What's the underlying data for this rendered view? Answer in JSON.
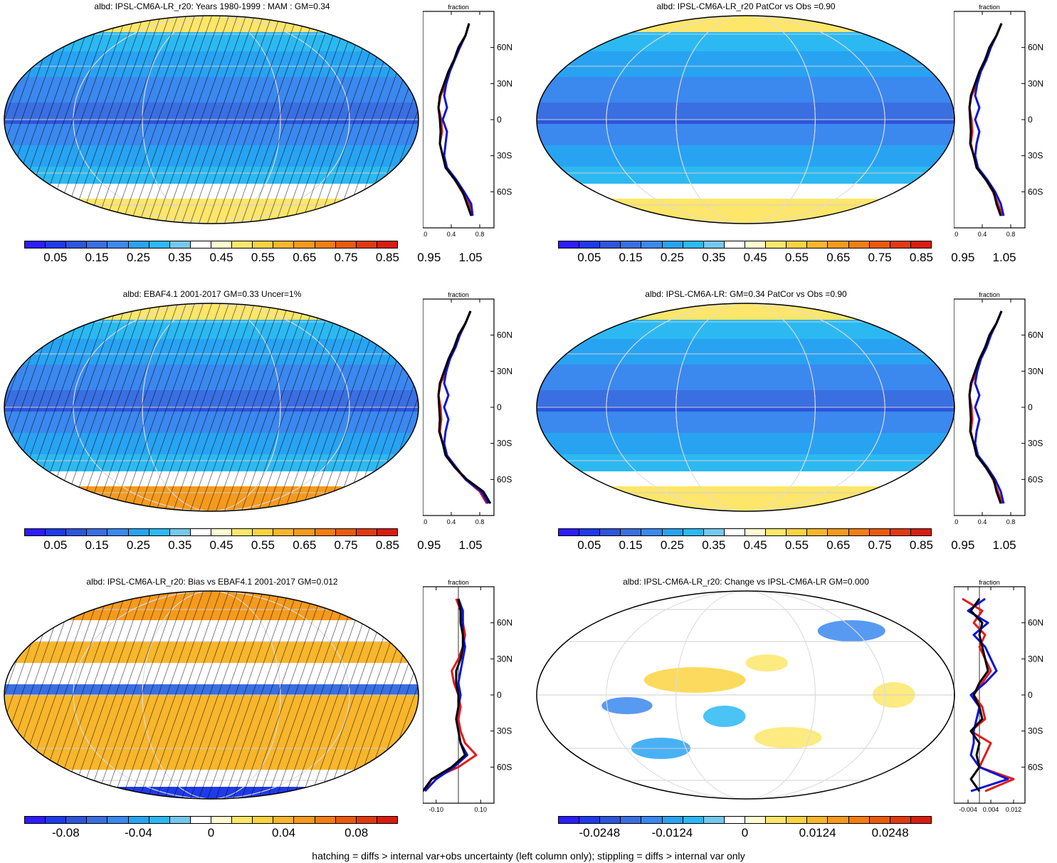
{
  "footer": "hatching = diffs > internal var+obs uncertainty (left column only); stippling = diffs > internal var only",
  "colors": {
    "ramp": [
      "#2c1dfc",
      "#1f3ae8",
      "#2d55dc",
      "#3a6fe2",
      "#3b88ef",
      "#28a3f2",
      "#2cb9f2",
      "#74c8ee",
      "#ffffff",
      "#fffad0",
      "#fde66a",
      "#fbd341",
      "#f8b62c",
      "#f59a1c",
      "#f27e12",
      "#ea5a0e",
      "#e2390f",
      "#d81d10"
    ],
    "model_line": "#e41a1c",
    "obs_line": "#0a14d8",
    "other_line": "#000000",
    "land": "#fde66a"
  },
  "panels": [
    {
      "id": "model-mam",
      "title": "albd: IPSL-CM6A-LR_r20: Years 1980-1999 : MAM : GM=0.34",
      "cb_labels": [
        "0.05",
        "0.15",
        "0.25",
        "0.35",
        "0.45",
        "0.55",
        "0.65",
        "0.75",
        "0.85",
        "0.95",
        "1.05"
      ],
      "prof_ticks_x": [
        "0.0",
        "0.4",
        "0.8"
      ],
      "prof_lat_labels": [
        "60N",
        "30N",
        "0",
        "30S",
        "60S"
      ],
      "prof_unit": "fraction"
    },
    {
      "id": "model-patcor",
      "title": "albd: IPSL-CM6A-LR_r20 PatCor vs Obs =0.90",
      "cb_labels": [
        "0.05",
        "0.15",
        "0.25",
        "0.35",
        "0.45",
        "0.55",
        "0.65",
        "0.75",
        "0.85",
        "0.95",
        "1.05"
      ],
      "prof_ticks_x": [
        "0.0",
        "0.4",
        "0.8"
      ],
      "prof_lat_labels": [
        "60N",
        "30N",
        "0",
        "30S",
        "60S"
      ],
      "prof_unit": "fraction"
    },
    {
      "id": "obs-ebaf",
      "title": "albd: EBAF4.1 2001-2017 GM=0.33 Uncer=1%",
      "cb_labels": [
        "0.05",
        "0.15",
        "0.25",
        "0.35",
        "0.45",
        "0.55",
        "0.65",
        "0.75",
        "0.85",
        "0.95",
        "1.05"
      ],
      "prof_ticks_x": [
        "0.0",
        "0.4",
        "0.8"
      ],
      "prof_lat_labels": [
        "60N",
        "30N",
        "0",
        "30S",
        "60S"
      ],
      "prof_unit": "fraction"
    },
    {
      "id": "ref-model",
      "title": "albd: IPSL-CM6A-LR: GM=0.34 PatCor vs Obs =0.90",
      "cb_labels": [
        "0.05",
        "0.15",
        "0.25",
        "0.35",
        "0.45",
        "0.55",
        "0.65",
        "0.75",
        "0.85",
        "0.95",
        "1.05"
      ],
      "prof_ticks_x": [
        "0.0",
        "0.4",
        "0.8"
      ],
      "prof_lat_labels": [
        "60N",
        "30N",
        "0",
        "30S",
        "60S"
      ],
      "prof_unit": "fraction"
    },
    {
      "id": "bias",
      "title": "albd: IPSL-CM6A-LR_r20: Bias vs EBAF4.1 2001-2017 GM=0.012",
      "cb_labels": [
        "-0.08",
        "-0.04",
        "0",
        "0.04",
        "0.08"
      ],
      "prof_ticks_x": [
        "-0.10",
        "0.10"
      ],
      "prof_lat_labels": [
        "60N",
        "30N",
        "0",
        "30S",
        "60S"
      ],
      "prof_unit": "fraction"
    },
    {
      "id": "change",
      "title": "albd: IPSL-CM6A-LR_r20: Change vs IPSL-CM6A-LR GM=0.000",
      "cb_labels": [
        "-0.0248",
        "-0.0124",
        "0",
        "0.0124",
        "0.0248"
      ],
      "prof_ticks_x": [
        "-0.004",
        "0.004",
        "0.012"
      ],
      "prof_lat_labels": [
        "60N",
        "30N",
        "0",
        "30S",
        "60S"
      ],
      "prof_unit": "fraction"
    }
  ],
  "chart_data": [
    {
      "type": "line",
      "panel": "model-mam",
      "title": "albd: IPSL-CM6A-LR_r20: Years 1980-1999 : MAM : GM=0.34",
      "xlabel": "fraction",
      "xlim": [
        0,
        1.0
      ],
      "ylim": [
        -90,
        90
      ],
      "x_ticks": [
        0.0,
        0.4,
        0.8
      ],
      "y_ticks": [
        "60N",
        "30N",
        "0",
        "30S",
        "60S"
      ],
      "lat": [
        80,
        70,
        60,
        50,
        40,
        30,
        20,
        10,
        0,
        -10,
        -20,
        -30,
        -40,
        -50,
        -60,
        -70,
        -80
      ],
      "series": [
        {
          "values": [
            0.65,
            0.6,
            0.52,
            0.45,
            0.38,
            0.33,
            0.25,
            0.22,
            0.26,
            0.27,
            0.24,
            0.28,
            0.33,
            0.45,
            0.55,
            0.65,
            0.7
          ]
        },
        {
          "values": [
            0.65,
            0.6,
            0.52,
            0.45,
            0.38,
            0.33,
            0.3,
            0.34,
            0.28,
            0.34,
            0.32,
            0.3,
            0.34,
            0.47,
            0.58,
            0.68,
            0.7
          ]
        },
        {
          "values": [
            0.65,
            0.6,
            0.5,
            0.44,
            0.36,
            0.3,
            0.24,
            0.22,
            0.24,
            0.25,
            0.24,
            0.28,
            0.32,
            0.45,
            0.56,
            0.62,
            0.68
          ]
        }
      ]
    },
    {
      "type": "line",
      "panel": "model-patcor",
      "title": "albd: IPSL-CM6A-LR_r20 PatCor vs Obs =0.90",
      "xlabel": "fraction",
      "xlim": [
        0,
        1.0
      ],
      "ylim": [
        -90,
        90
      ],
      "x_ticks": [
        0.0,
        0.4,
        0.8
      ],
      "y_ticks": [
        "60N",
        "30N",
        "0",
        "30S",
        "60S"
      ],
      "lat": [
        80,
        70,
        60,
        50,
        40,
        30,
        20,
        10,
        0,
        -10,
        -20,
        -30,
        -40,
        -50,
        -60,
        -70,
        -80
      ],
      "series": [
        {
          "values": [
            0.67,
            0.6,
            0.52,
            0.46,
            0.38,
            0.33,
            0.25,
            0.22,
            0.25,
            0.26,
            0.24,
            0.28,
            0.33,
            0.45,
            0.55,
            0.62,
            0.68
          ]
        },
        {
          "values": [
            0.67,
            0.6,
            0.52,
            0.46,
            0.38,
            0.33,
            0.3,
            0.36,
            0.3,
            0.36,
            0.32,
            0.3,
            0.34,
            0.47,
            0.58,
            0.66,
            0.7
          ]
        },
        {
          "values": [
            0.67,
            0.6,
            0.5,
            0.44,
            0.36,
            0.3,
            0.24,
            0.22,
            0.23,
            0.24,
            0.23,
            0.28,
            0.32,
            0.45,
            0.56,
            0.6,
            0.66
          ]
        }
      ]
    },
    {
      "type": "line",
      "panel": "obs-ebaf",
      "title": "albd: EBAF4.1 2001-2017 GM=0.33 Uncer=1%",
      "xlabel": "fraction",
      "xlim": [
        0,
        1.0
      ],
      "ylim": [
        -90,
        90
      ],
      "x_ticks": [
        0.0,
        0.4,
        0.8
      ],
      "y_ticks": [
        "60N",
        "30N",
        "0",
        "30S",
        "60S"
      ],
      "lat": [
        80,
        70,
        60,
        50,
        40,
        30,
        20,
        10,
        0,
        -10,
        -20,
        -30,
        -40,
        -50,
        -60,
        -70,
        -80
      ],
      "series": [
        {
          "values": [
            0.67,
            0.6,
            0.52,
            0.46,
            0.38,
            0.33,
            0.25,
            0.22,
            0.25,
            0.26,
            0.24,
            0.28,
            0.33,
            0.45,
            0.6,
            0.8,
            0.9
          ]
        },
        {
          "values": [
            0.67,
            0.6,
            0.52,
            0.46,
            0.38,
            0.33,
            0.3,
            0.36,
            0.3,
            0.36,
            0.32,
            0.3,
            0.34,
            0.47,
            0.6,
            0.82,
            0.92
          ]
        },
        {
          "values": [
            0.67,
            0.6,
            0.5,
            0.44,
            0.36,
            0.3,
            0.24,
            0.22,
            0.23,
            0.24,
            0.23,
            0.28,
            0.32,
            0.45,
            0.62,
            0.85,
            0.95
          ]
        }
      ]
    },
    {
      "type": "line",
      "panel": "ref-model",
      "title": "albd: IPSL-CM6A-LR: GM=0.34 PatCor vs Obs =0.90",
      "xlabel": "fraction",
      "xlim": [
        0,
        1.0
      ],
      "ylim": [
        -90,
        90
      ],
      "x_ticks": [
        0.0,
        0.4,
        0.8
      ],
      "y_ticks": [
        "60N",
        "30N",
        "0",
        "30S",
        "60S"
      ],
      "lat": [
        80,
        70,
        60,
        50,
        40,
        30,
        20,
        10,
        0,
        -10,
        -20,
        -30,
        -40,
        -50,
        -60,
        -70,
        -80
      ],
      "series": [
        {
          "values": [
            0.67,
            0.6,
            0.52,
            0.46,
            0.38,
            0.33,
            0.25,
            0.22,
            0.25,
            0.26,
            0.24,
            0.28,
            0.33,
            0.45,
            0.55,
            0.62,
            0.68
          ]
        },
        {
          "values": [
            0.67,
            0.6,
            0.52,
            0.46,
            0.38,
            0.33,
            0.3,
            0.36,
            0.3,
            0.36,
            0.32,
            0.3,
            0.34,
            0.47,
            0.58,
            0.66,
            0.7
          ]
        },
        {
          "values": [
            0.67,
            0.6,
            0.5,
            0.44,
            0.36,
            0.3,
            0.24,
            0.22,
            0.23,
            0.24,
            0.23,
            0.28,
            0.32,
            0.45,
            0.56,
            0.6,
            0.66
          ]
        }
      ]
    },
    {
      "type": "line",
      "panel": "bias",
      "title": "albd: IPSL-CM6A-LR_r20: Bias vs EBAF4.1 2001-2017 GM=0.012",
      "xlabel": "fraction",
      "xlim": [
        -0.16,
        0.16
      ],
      "ylim": [
        -90,
        90
      ],
      "x_ticks": [
        -0.1,
        0.1
      ],
      "y_ticks": [
        "60N",
        "30N",
        "0",
        "30S",
        "60S"
      ],
      "lat": [
        80,
        70,
        60,
        50,
        40,
        30,
        20,
        10,
        0,
        -10,
        -20,
        -30,
        -40,
        -50,
        -60,
        -70,
        -80
      ],
      "series": [
        {
          "values": [
            -0.01,
            0.01,
            0.02,
            0.03,
            0.02,
            0.0,
            -0.03,
            -0.02,
            0.0,
            0.01,
            0.0,
            0.01,
            0.03,
            0.08,
            0.0,
            -0.12,
            -0.15
          ]
        },
        {
          "values": [
            0.0,
            0.02,
            0.02,
            0.02,
            0.03,
            0.02,
            0.01,
            0.0,
            0.01,
            0.0,
            -0.01,
            0.0,
            0.01,
            0.04,
            -0.02,
            -0.1,
            -0.15
          ]
        },
        {
          "values": [
            0.0,
            0.01,
            0.01,
            0.02,
            0.02,
            0.01,
            -0.01,
            -0.01,
            0.0,
            0.0,
            -0.01,
            0.0,
            0.01,
            0.03,
            -0.03,
            -0.12,
            -0.16
          ]
        }
      ]
    },
    {
      "type": "line",
      "panel": "change",
      "title": "albd: IPSL-CM6A-LR_r20: Change vs IPSL-CM6A-LR GM=0.000",
      "xlabel": "fraction",
      "xlim": [
        -0.009,
        0.016
      ],
      "ylim": [
        -90,
        90
      ],
      "x_ticks": [
        -0.004,
        0.004,
        0.012
      ],
      "y_ticks": [
        "60N",
        "30N",
        "0",
        "30S",
        "60S"
      ],
      "lat": [
        80,
        70,
        60,
        50,
        40,
        30,
        20,
        10,
        0,
        -10,
        -20,
        -30,
        -40,
        -50,
        -60,
        -70,
        -80
      ],
      "series": [
        {
          "values": [
            -0.006,
            0.001,
            -0.002,
            0.002,
            0.0,
            0.002,
            0.004,
            0.001,
            -0.002,
            0.001,
            0.002,
            -0.003,
            0.004,
            0.002,
            0.0,
            0.012,
            0.002
          ]
        },
        {
          "values": [
            0.002,
            -0.004,
            0.003,
            -0.002,
            0.002,
            0.004,
            0.006,
            0.002,
            -0.003,
            0.0,
            -0.001,
            -0.002,
            -0.002,
            -0.003,
            0.0,
            0.01,
            -0.003
          ]
        },
        {
          "values": [
            0.0,
            -0.003,
            0.001,
            0.0,
            0.001,
            0.002,
            0.003,
            0.0,
            -0.002,
            0.0,
            0.001,
            -0.003,
            0.0,
            -0.001,
            0.0,
            -0.003,
            0.0
          ]
        }
      ]
    }
  ]
}
